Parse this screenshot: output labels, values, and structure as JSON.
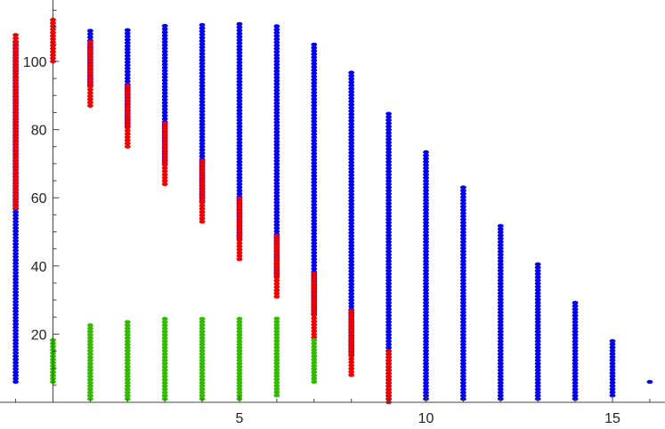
{
  "chart_data": {
    "type": "scatter",
    "title": "",
    "xlabel": "",
    "ylabel": "",
    "xlim": [
      -1.1,
      16.6
    ],
    "ylim": [
      0,
      118
    ],
    "x_ticks": [
      5,
      10,
      15
    ],
    "y_ticks": [
      20,
      40,
      60,
      80,
      100
    ],
    "grid": false,
    "legend": "none",
    "series": [
      {
        "color": "#0000ee",
        "ranges": [
          {
            "x": -1,
            "y": [
              6,
              106
            ]
          },
          {
            "x": 1,
            "y": [
              93,
              109
            ]
          },
          {
            "x": 2,
            "y": [
              81,
              110
            ]
          },
          {
            "x": 3,
            "y": [
              70,
              111
            ]
          },
          {
            "x": 4,
            "y": [
              59,
              111
            ]
          },
          {
            "x": 5,
            "y": [
              48,
              111
            ]
          },
          {
            "x": 6,
            "y": [
              37,
              111
            ]
          },
          {
            "x": 7,
            "y": [
              26,
              105
            ]
          },
          {
            "x": 8,
            "y": [
              14,
              97
            ]
          },
          {
            "x": 9,
            "y": [
              1,
              85
            ]
          },
          {
            "x": 10,
            "y": [
              1,
              74
            ]
          },
          {
            "x": 11,
            "y": [
              1,
              63
            ]
          },
          {
            "x": 12,
            "y": [
              1,
              52
            ]
          },
          {
            "x": 13,
            "y": [
              1,
              41
            ]
          },
          {
            "x": 14,
            "y": [
              1,
              30
            ]
          },
          {
            "x": 15,
            "y": [
              2,
              18
            ]
          },
          {
            "x": 16,
            "y": [
              6,
              6
            ]
          }
        ]
      },
      {
        "color": "#ee0000",
        "ranges": [
          {
            "x": -1,
            "y": [
              57,
              108
            ]
          },
          {
            "x": 0,
            "y": [
              100,
              113
            ]
          },
          {
            "x": 1,
            "y": [
              87,
              106
            ]
          },
          {
            "x": 2,
            "y": [
              75,
              93
            ]
          },
          {
            "x": 3,
            "y": [
              64,
              82
            ]
          },
          {
            "x": 4,
            "y": [
              53,
              71
            ]
          },
          {
            "x": 5,
            "y": [
              42,
              60
            ]
          },
          {
            "x": 6,
            "y": [
              31,
              49
            ]
          },
          {
            "x": 7,
            "y": [
              19,
              38
            ]
          },
          {
            "x": 8,
            "y": [
              8,
              27
            ]
          },
          {
            "x": 9,
            "y": [
              0,
              15
            ]
          }
        ]
      },
      {
        "color": "#33bb00",
        "ranges": [
          {
            "x": 0,
            "y": [
              6,
              19
            ]
          },
          {
            "x": 1,
            "y": [
              1,
              23
            ]
          },
          {
            "x": 2,
            "y": [
              1,
              24
            ]
          },
          {
            "x": 3,
            "y": [
              1,
              25
            ]
          },
          {
            "x": 4,
            "y": [
              1,
              25
            ]
          },
          {
            "x": 5,
            "y": [
              1,
              25
            ]
          },
          {
            "x": 6,
            "y": [
              2,
              25
            ]
          },
          {
            "x": 7,
            "y": [
              6,
              19
            ]
          }
        ]
      }
    ]
  }
}
